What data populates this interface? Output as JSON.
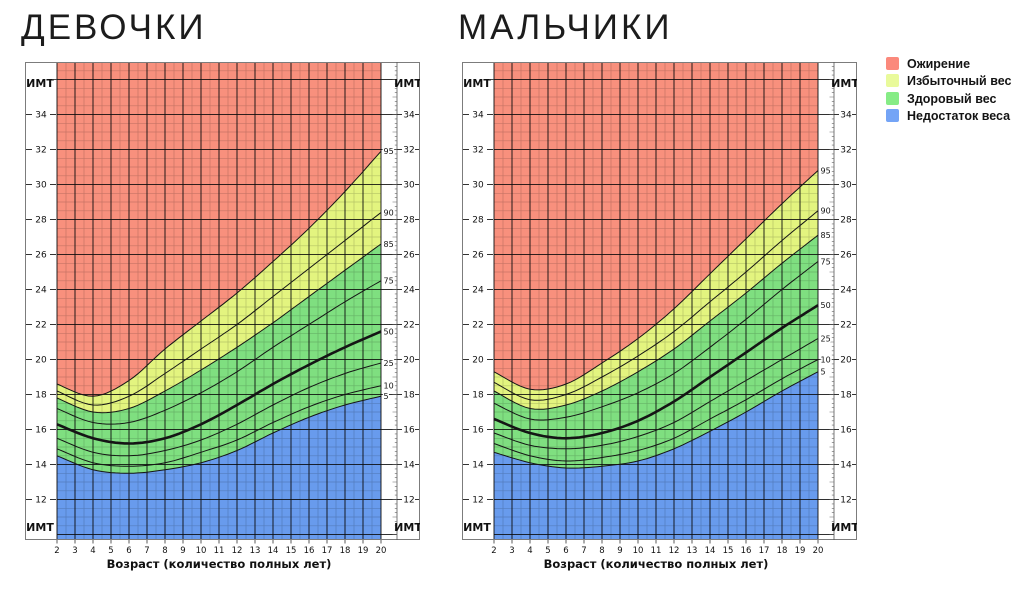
{
  "page": {
    "background": "#ffffff"
  },
  "legend": {
    "items": [
      {
        "label": "Ожирение",
        "color": "#fb897c"
      },
      {
        "label": "Избыточный вес",
        "color": "#e9fa9b"
      },
      {
        "label": "Здоровый вес",
        "color": "#86ec86"
      },
      {
        "label": "Недостаток веса",
        "color": "#74a4f6"
      }
    ]
  },
  "chart_data": [
    {
      "type": "line",
      "title": "ДЕВОЧКИ",
      "xlabel": "Возраст (количество полных лет)",
      "ylabel": "ИМТ",
      "xlim": [
        2,
        20
      ],
      "ylim": [
        9.7,
        37
      ],
      "grid": "on",
      "x": [
        2,
        4,
        6,
        8,
        10,
        12,
        14,
        16,
        18,
        20
      ],
      "series": [
        {
          "name": "95",
          "values": [
            18.6,
            17.9,
            18.8,
            20.6,
            22.2,
            23.8,
            25.6,
            27.5,
            29.6,
            31.9
          ]
        },
        {
          "name": "90",
          "values": [
            18.2,
            17.4,
            17.9,
            19.2,
            20.6,
            22.0,
            23.6,
            25.2,
            26.8,
            28.4
          ]
        },
        {
          "name": "85",
          "values": [
            17.8,
            17.0,
            17.2,
            18.2,
            19.4,
            20.7,
            22.1,
            23.6,
            25.1,
            26.6
          ]
        },
        {
          "name": "75",
          "values": [
            17.2,
            16.4,
            16.4,
            17.1,
            18.1,
            19.3,
            20.7,
            22.0,
            23.3,
            24.5
          ]
        },
        {
          "name": "50",
          "values": [
            16.3,
            15.5,
            15.2,
            15.5,
            16.3,
            17.4,
            18.6,
            19.7,
            20.7,
            21.6
          ]
        },
        {
          "name": "25",
          "values": [
            15.5,
            14.7,
            14.5,
            14.8,
            15.4,
            16.3,
            17.4,
            18.4,
            19.2,
            19.8
          ]
        },
        {
          "name": "10",
          "values": [
            14.9,
            14.1,
            13.9,
            14.1,
            14.7,
            15.4,
            16.4,
            17.3,
            18.0,
            18.5
          ]
        },
        {
          "name": "5",
          "values": [
            14.5,
            13.7,
            13.5,
            13.7,
            14.1,
            14.8,
            15.8,
            16.7,
            17.4,
            17.9
          ]
        }
      ],
      "bold_series": "50",
      "zones": [
        {
          "label": "Ожирение",
          "color": "#f8907d",
          "lo": "95",
          "hi": "top"
        },
        {
          "label": "Избыточный вес",
          "color": "#e3f47f",
          "lo": "85",
          "hi": "95"
        },
        {
          "label": "Здоровый вес",
          "color": "#7fdf80",
          "lo": "5",
          "hi": "85"
        },
        {
          "label": "Недостаток веса",
          "color": "#689bed",
          "lo": "bottom",
          "hi": "5"
        }
      ],
      "x_ticks": [
        2,
        3,
        4,
        5,
        6,
        7,
        8,
        9,
        10,
        11,
        12,
        13,
        14,
        15,
        16,
        17,
        18,
        19,
        20
      ],
      "y_ticks": [
        34,
        32,
        30,
        28,
        26,
        24,
        22,
        20,
        18,
        16,
        14,
        12
      ]
    },
    {
      "type": "line",
      "title": "МАЛЬЧИКИ",
      "xlabel": "Возраст (количество полных лет)",
      "ylabel": "ИМТ",
      "xlim": [
        2,
        20
      ],
      "ylim": [
        9.7,
        37
      ],
      "grid": "on",
      "x": [
        2,
        4,
        6,
        8,
        10,
        12,
        14,
        16,
        18,
        20
      ],
      "series": [
        {
          "name": "95",
          "values": [
            19.3,
            18.3,
            18.6,
            19.8,
            21.2,
            22.9,
            24.9,
            26.9,
            28.9,
            30.8
          ]
        },
        {
          "name": "90",
          "values": [
            18.7,
            17.7,
            18.0,
            19.0,
            20.2,
            21.6,
            23.3,
            25.0,
            26.8,
            28.5
          ]
        },
        {
          "name": "85",
          "values": [
            18.2,
            17.2,
            17.4,
            18.2,
            19.3,
            20.6,
            22.2,
            23.8,
            25.5,
            27.1
          ]
        },
        {
          "name": "75",
          "values": [
            17.5,
            16.6,
            16.7,
            17.3,
            18.1,
            19.2,
            20.7,
            22.3,
            24.0,
            25.6
          ]
        },
        {
          "name": "50",
          "values": [
            16.6,
            15.8,
            15.5,
            15.8,
            16.5,
            17.6,
            19.0,
            20.4,
            21.8,
            23.1
          ]
        },
        {
          "name": "25",
          "values": [
            15.8,
            15.1,
            14.9,
            15.1,
            15.6,
            16.4,
            17.6,
            18.8,
            20.0,
            21.2
          ]
        },
        {
          "name": "10",
          "values": [
            15.2,
            14.5,
            14.2,
            14.4,
            14.8,
            15.5,
            16.6,
            17.7,
            18.9,
            20.0
          ]
        },
        {
          "name": "5",
          "values": [
            14.7,
            14.1,
            13.8,
            13.9,
            14.2,
            14.9,
            15.9,
            17.0,
            18.2,
            19.3
          ]
        }
      ],
      "bold_series": "50",
      "zones": [
        {
          "label": "Ожирение",
          "color": "#f8907d",
          "lo": "95",
          "hi": "top"
        },
        {
          "label": "Избыточный вес",
          "color": "#e3f47f",
          "lo": "85",
          "hi": "95"
        },
        {
          "label": "Здоровый вес",
          "color": "#7fdf80",
          "lo": "5",
          "hi": "85"
        },
        {
          "label": "Недостаток веса",
          "color": "#689bed",
          "lo": "bottom",
          "hi": "5"
        }
      ],
      "x_ticks": [
        2,
        3,
        4,
        5,
        6,
        7,
        8,
        9,
        10,
        11,
        12,
        13,
        14,
        15,
        16,
        17,
        18,
        19,
        20
      ],
      "y_ticks": [
        34,
        32,
        30,
        28,
        26,
        24,
        22,
        20,
        18,
        16,
        14,
        12
      ]
    }
  ]
}
